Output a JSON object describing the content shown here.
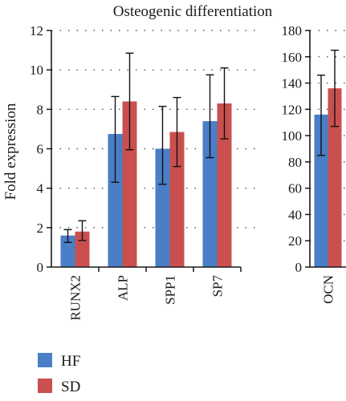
{
  "colors": {
    "hf": "#4a7ec7",
    "sd": "#c9504e",
    "axis": "#1a1a1a",
    "grid": "#555555"
  },
  "chart_data": {
    "type": "bar",
    "title": "Osteogenic differentiation",
    "ylabel": "Fold expression",
    "grid": "dotted horizontal",
    "legend_position": "bottom-left",
    "legend": [
      {
        "name": "HF",
        "color": "#4a7ec7"
      },
      {
        "name": "SD",
        "color": "#c9504e"
      }
    ],
    "panels": [
      {
        "categories": [
          "RUNX2",
          "ALP",
          "SPP1",
          "SP7"
        ],
        "ylim": [
          0,
          12
        ],
        "yticks": [
          "0",
          "2",
          "4",
          "6",
          "8",
          "10",
          "12"
        ],
        "series": [
          {
            "name": "HF",
            "values": [
              1.6,
              6.75,
              6.0,
              7.4
            ],
            "err_low": [
              1.25,
              4.3,
              4.2,
              5.55
            ],
            "err_high": [
              1.9,
              8.65,
              8.15,
              9.75
            ]
          },
          {
            "name": "SD",
            "values": [
              1.8,
              8.4,
              6.85,
              8.3
            ],
            "err_low": [
              1.35,
              5.95,
              5.1,
              6.5
            ],
            "err_high": [
              2.35,
              10.85,
              8.6,
              10.1
            ]
          }
        ]
      },
      {
        "categories": [
          "OCN"
        ],
        "ylim": [
          0,
          180
        ],
        "yticks": [
          "0",
          "20",
          "40",
          "60",
          "80",
          "100",
          "120",
          "140",
          "160",
          "180"
        ],
        "series": [
          {
            "name": "HF",
            "values": [
              116
            ],
            "err_low": [
              85
            ],
            "err_high": [
              146
            ]
          },
          {
            "name": "SD",
            "values": [
              136
            ],
            "err_low": [
              107
            ],
            "err_high": [
              165
            ]
          }
        ]
      }
    ]
  }
}
